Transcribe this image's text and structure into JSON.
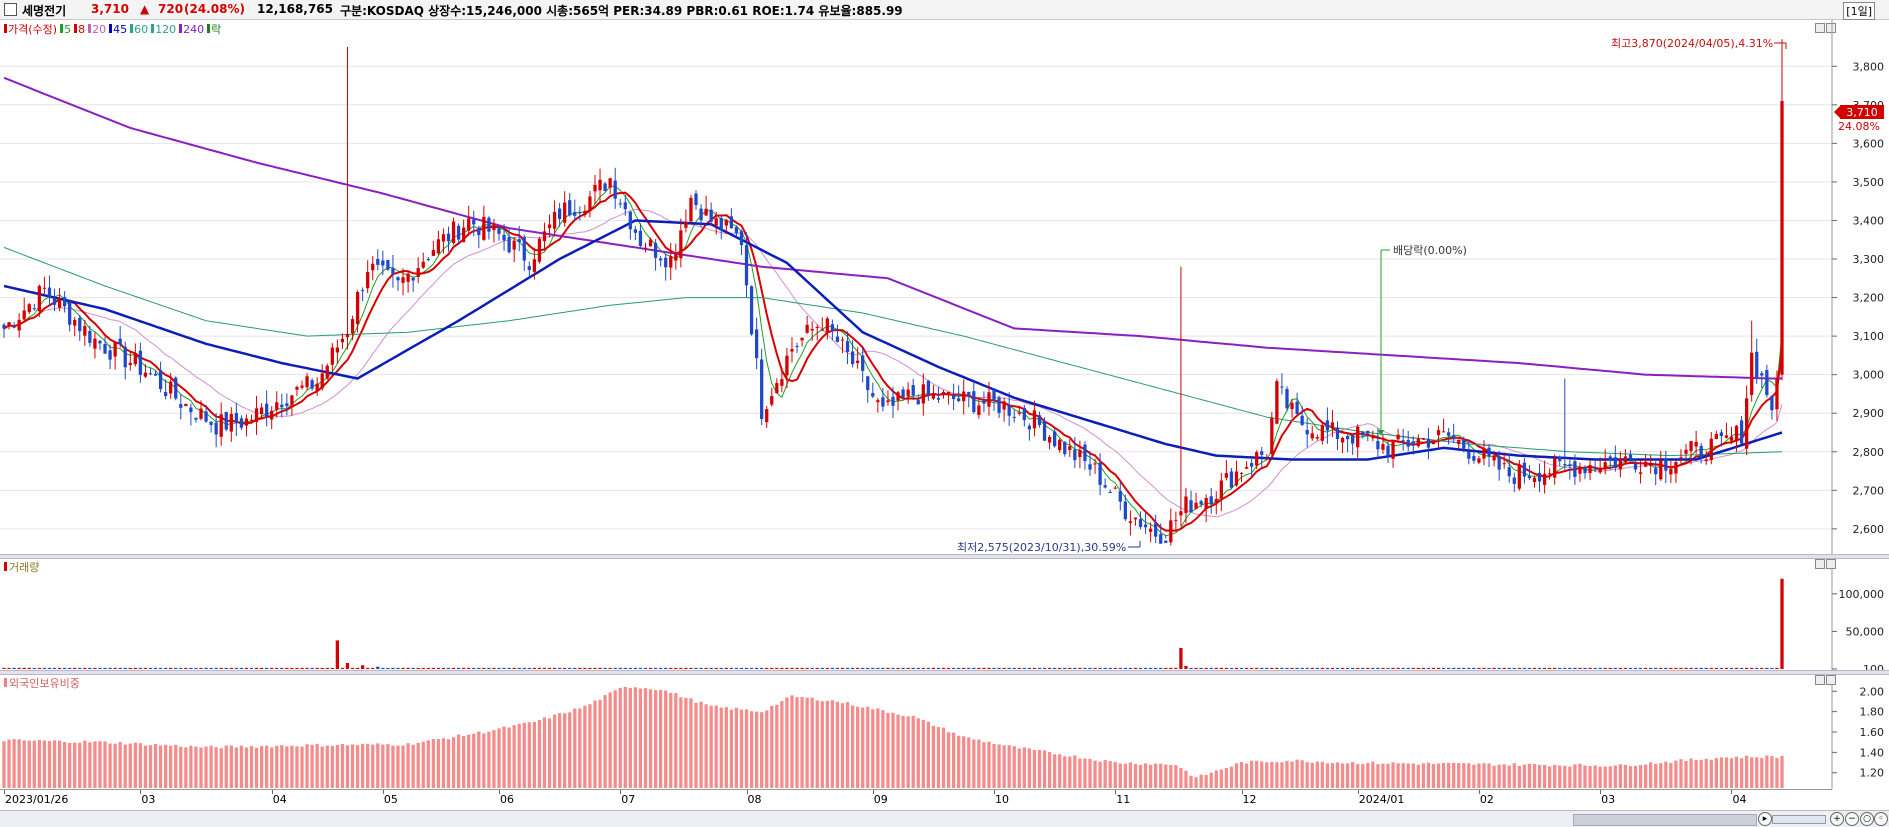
{
  "header": {
    "stock_name": "세명전기",
    "price": "3,710",
    "change_arrow": "▲",
    "change": "720",
    "change_pct": "(24.08%)",
    "volume": "12,168,765",
    "stats": "구분:KOSDAQ 상장수:15,246,000 시총:565억 PER:34.89 PBR:0.61 ROE:1.74 유보율:885.99",
    "period": "[1일]",
    "colors": {
      "up": "#d40000",
      "down": "#1f49c8"
    }
  },
  "price_legend": [
    {
      "label": "가격(수정)",
      "color": "#d40000"
    },
    {
      "label": "5",
      "color": "#22a022"
    },
    {
      "label": "8",
      "color": "#d80000"
    },
    {
      "label": "20",
      "color": "#c060c0"
    },
    {
      "label": "45",
      "color": "#0000c0"
    },
    {
      "label": "60",
      "color": "#30a090"
    },
    {
      "label": "120",
      "color": "#30a090"
    },
    {
      "label": "240",
      "color": "#8a20c0"
    },
    {
      "label": "락",
      "color": "#208020"
    }
  ],
  "volume_legend": "거래량",
  "foreign_legend": "외국인보유비중",
  "annotations": {
    "high": "최고3,870(2024/04/05),4.31%",
    "low": "최저2,575(2023/10/31),30.59%",
    "dividend": "배당락(0.00%)"
  },
  "price_badge": {
    "value": "3,710",
    "pct": "24.08%"
  },
  "chart_data": [
    {
      "type": "candlestick",
      "title": "",
      "y_ticks": [
        "3,800",
        "3,700",
        "3,600",
        "3,500",
        "3,400",
        "3,300",
        "3,200",
        "3,100",
        "3,000",
        "2,900",
        "2,800",
        "2,700",
        "2,600"
      ],
      "ylim": [
        2540,
        3920
      ],
      "x_labels": [
        "2023/01/26",
        "03",
        "04",
        "05",
        "06",
        "07",
        "08",
        "09",
        "10",
        "11",
        "12",
        "2024/01",
        "02",
        "03",
        "04"
      ],
      "last_close": 3710,
      "prev_close": 2990,
      "high": 3870,
      "low": 2575,
      "anchors": [
        [
          0,
          3120
        ],
        [
          8,
          3220
        ],
        [
          18,
          3090
        ],
        [
          28,
          3010
        ],
        [
          35,
          2930
        ],
        [
          42,
          2870
        ],
        [
          48,
          2880
        ],
        [
          55,
          2940
        ],
        [
          62,
          2980
        ],
        [
          68,
          3120
        ],
        [
          72,
          3280
        ],
        [
          78,
          3230
        ],
        [
          85,
          3330
        ],
        [
          92,
          3400
        ],
        [
          98,
          3360
        ],
        [
          104,
          3300
        ],
        [
          110,
          3420
        ],
        [
          116,
          3460
        ],
        [
          120,
          3510
        ],
        [
          126,
          3350
        ],
        [
          132,
          3300
        ],
        [
          136,
          3460
        ],
        [
          140,
          3400
        ],
        [
          146,
          3350
        ],
        [
          150,
          2910
        ],
        [
          156,
          3070
        ],
        [
          162,
          3140
        ],
        [
          168,
          3030
        ],
        [
          174,
          2900
        ],
        [
          180,
          2950
        ],
        [
          186,
          2940
        ],
        [
          192,
          2930
        ],
        [
          198,
          2920
        ],
        [
          204,
          2880
        ],
        [
          210,
          2810
        ],
        [
          216,
          2750
        ],
        [
          222,
          2650
        ],
        [
          228,
          2590
        ],
        [
          230,
          2590
        ],
        [
          234,
          2660
        ],
        [
          240,
          2700
        ],
        [
          246,
          2770
        ],
        [
          250,
          2800
        ],
        [
          252,
          2960
        ],
        [
          256,
          2880
        ],
        [
          262,
          2850
        ],
        [
          268,
          2840
        ],
        [
          274,
          2810
        ],
        [
          280,
          2830
        ],
        [
          286,
          2840
        ],
        [
          292,
          2790
        ],
        [
          298,
          2740
        ],
        [
          304,
          2750
        ],
        [
          310,
          2760
        ],
        [
          316,
          2770
        ],
        [
          322,
          2780
        ],
        [
          328,
          2770
        ],
        [
          334,
          2800
        ],
        [
          340,
          2820
        ],
        [
          344,
          2850
        ],
        [
          346,
          3050
        ],
        [
          348,
          2990
        ],
        [
          350,
          2920
        ],
        [
          351,
          2990
        ],
        [
          352,
          3710
        ]
      ],
      "ma": [
        {
          "name": "240",
          "color": "#8a20c0",
          "points": [
            [
              0,
              3770
            ],
            [
              25,
              3640
            ],
            [
              50,
              3550
            ],
            [
              75,
              3470
            ],
            [
              100,
              3380
            ],
            [
              125,
              3330
            ],
            [
              150,
              3280
            ],
            [
              175,
              3250
            ],
            [
              200,
              3120
            ],
            [
              225,
              3100
            ],
            [
              250,
              3070
            ],
            [
              275,
              3050
            ],
            [
              300,
              3030
            ],
            [
              325,
              3000
            ],
            [
              350,
              2990
            ]
          ]
        },
        {
          "name": "120",
          "color": "#2a9a70",
          "points": [
            [
              0,
              3330
            ],
            [
              20,
              3230
            ],
            [
              40,
              3140
            ],
            [
              60,
              3100
            ],
            [
              80,
              3110
            ],
            [
              100,
              3140
            ],
            [
              120,
              3180
            ],
            [
              135,
              3200
            ],
            [
              150,
              3200
            ],
            [
              170,
              3160
            ],
            [
              190,
              3100
            ],
            [
              210,
              3030
            ],
            [
              230,
              2960
            ],
            [
              250,
              2890
            ],
            [
              270,
              2850
            ],
            [
              290,
              2820
            ],
            [
              310,
              2800
            ],
            [
              330,
              2790
            ],
            [
              352,
              2800
            ]
          ]
        },
        {
          "name": "45",
          "color": "#0b1fb8",
          "points": [
            [
              0,
              3230
            ],
            [
              20,
              3170
            ],
            [
              40,
              3080
            ],
            [
              55,
              3030
            ],
            [
              70,
              2990
            ],
            [
              90,
              3140
            ],
            [
              110,
              3300
            ],
            [
              125,
              3400
            ],
            [
              140,
              3390
            ],
            [
              155,
              3290
            ],
            [
              170,
              3110
            ],
            [
              185,
              3020
            ],
            [
              200,
              2940
            ],
            [
              215,
              2880
            ],
            [
              230,
              2820
            ],
            [
              240,
              2790
            ],
            [
              255,
              2780
            ],
            [
              270,
              2780
            ],
            [
              285,
              2810
            ],
            [
              300,
              2790
            ],
            [
              315,
              2780
            ],
            [
              335,
              2780
            ],
            [
              352,
              2850
            ]
          ]
        }
      ]
    },
    {
      "type": "bar",
      "title": "",
      "name": "거래량",
      "y_ticks": [
        "100,000",
        "50,000",
        "100"
      ],
      "ylim": [
        0,
        145000
      ],
      "base": 1500,
      "spikes": [
        [
          66,
          38000
        ],
        [
          68,
          8000
        ],
        [
          71,
          5000
        ],
        [
          74,
          3000
        ],
        [
          233,
          28000
        ],
        [
          234,
          4000
        ],
        [
          352,
          120000
        ]
      ]
    },
    {
      "type": "bar",
      "title": "",
      "name": "외국인보유비중",
      "y_ticks": [
        "2.00",
        "1.80",
        "1.60",
        "1.40",
        "1.20"
      ],
      "ylim": [
        1.05,
        2.15
      ],
      "anchors": [
        [
          0,
          1.52
        ],
        [
          20,
          1.5
        ],
        [
          40,
          1.45
        ],
        [
          60,
          1.47
        ],
        [
          80,
          1.48
        ],
        [
          95,
          1.6
        ],
        [
          105,
          1.7
        ],
        [
          115,
          1.85
        ],
        [
          123,
          2.05
        ],
        [
          130,
          2.02
        ],
        [
          140,
          1.85
        ],
        [
          150,
          1.8
        ],
        [
          156,
          1.95
        ],
        [
          165,
          1.9
        ],
        [
          180,
          1.75
        ],
        [
          190,
          1.55
        ],
        [
          200,
          1.45
        ],
        [
          220,
          1.3
        ],
        [
          232,
          1.28
        ],
        [
          236,
          1.15
        ],
        [
          245,
          1.3
        ],
        [
          255,
          1.32
        ],
        [
          265,
          1.3
        ],
        [
          280,
          1.29
        ],
        [
          300,
          1.28
        ],
        [
          320,
          1.27
        ],
        [
          340,
          1.35
        ],
        [
          352,
          1.36
        ]
      ]
    }
  ]
}
